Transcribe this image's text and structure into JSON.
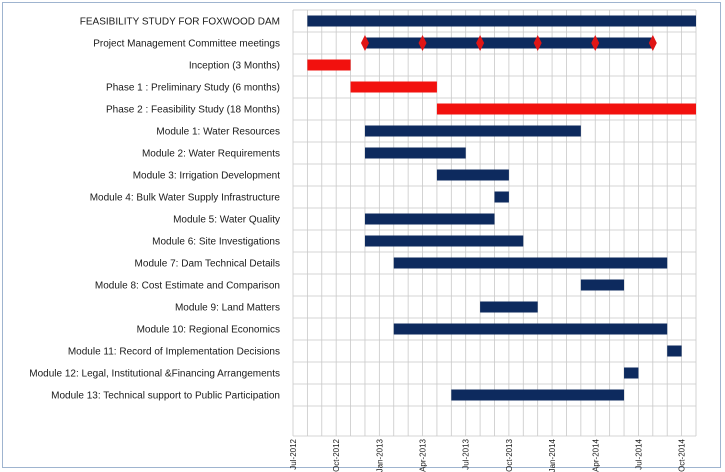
{
  "chart_data": {
    "type": "gantt",
    "x_unit": "month",
    "xlim": [
      "2012-07",
      "2014-11"
    ],
    "tick_labels": [
      "Jul-2012",
      "Oct-2012",
      "Jan-2013",
      "Apr-2013",
      "Jul-2013",
      "Oct-2013",
      "Jan-2014",
      "Apr-2014",
      "Jul-2014",
      "Oct-2014"
    ],
    "tick_dates": [
      "2012-07",
      "2012-10",
      "2013-01",
      "2013-04",
      "2013-07",
      "2013-10",
      "2014-01",
      "2014-04",
      "2014-07",
      "2014-10"
    ],
    "grid": true,
    "colors": {
      "primary": "#0d2a5e",
      "highlight": "#f2110e",
      "milestone": "#e01515",
      "grid": "#c8c8c8"
    },
    "rows": [
      {
        "label": "FEASIBILITY STUDY FOR FOXWOOD DAM",
        "start": "2012-08",
        "end": "2014-11",
        "color": "primary"
      },
      {
        "label": "Project Management Committee meetings",
        "start": "2012-12",
        "end": "2014-08",
        "color": "primary",
        "milestones": [
          "2012-12",
          "2013-04",
          "2013-08",
          "2013-12",
          "2014-04",
          "2014-08"
        ]
      },
      {
        "label": "Inception (3 Months)",
        "start": "2012-08",
        "end": "2012-11",
        "color": "highlight"
      },
      {
        "label": "Phase 1 : Preliminary Study (6 months)",
        "start": "2012-11",
        "end": "2013-05",
        "color": "highlight"
      },
      {
        "label": "Phase 2 : Feasibility Study (18 Months)",
        "start": "2013-05",
        "end": "2014-11",
        "color": "highlight"
      },
      {
        "label": "Module 1: Water Resources",
        "start": "2012-12",
        "end": "2014-03",
        "color": "primary"
      },
      {
        "label": "Module 2: Water Requirements",
        "start": "2012-12",
        "end": "2013-07",
        "color": "primary"
      },
      {
        "label": "Module 3: Irrigation Development",
        "start": "2013-05",
        "end": "2013-10",
        "color": "primary"
      },
      {
        "label": "Module 4: Bulk Water Supply Infrastructure",
        "start": "2013-09",
        "end": "2013-10",
        "color": "primary"
      },
      {
        "label": "Module 5: Water Quality",
        "start": "2012-12",
        "end": "2013-09",
        "color": "primary"
      },
      {
        "label": "Module 6: Site Investigations",
        "start": "2012-12",
        "end": "2013-11",
        "color": "primary"
      },
      {
        "label": "Module 7: Dam Technical Details",
        "start": "2013-02",
        "end": "2014-09",
        "color": "primary"
      },
      {
        "label": "Module 8: Cost Estimate and Comparison",
        "start": "2014-03",
        "end": "2014-06",
        "color": "primary"
      },
      {
        "label": "Module 9: Land Matters",
        "start": "2013-08",
        "end": "2013-12",
        "color": "primary"
      },
      {
        "label": "Module 10: Regional Economics",
        "start": "2013-02",
        "end": "2014-09",
        "color": "primary"
      },
      {
        "label": "Module 11: Record of Implementation Decisions",
        "start": "2014-09",
        "end": "2014-10",
        "color": "primary"
      },
      {
        "label": "Module 12: Legal, Institutional &Financing Arrangements",
        "start": "2014-06",
        "end": "2014-07",
        "color": "primary"
      },
      {
        "label": "Module 13: Technical support to Public Participation",
        "start": "2013-06",
        "end": "2014-06",
        "color": "primary"
      }
    ]
  }
}
